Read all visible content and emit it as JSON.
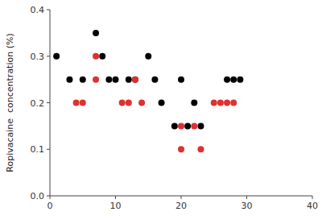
{
  "chart_data": {
    "type": "scatter",
    "ylabel": "Ropivacaine  concentration (%)",
    "series": [
      {
        "color": "#000000",
        "x": [
          1,
          3,
          5,
          7,
          8,
          9,
          10,
          12,
          13,
          15,
          16,
          17,
          19,
          20,
          21,
          22,
          23,
          27,
          28,
          29
        ],
        "values": [
          0.3,
          0.25,
          0.25,
          0.35,
          0.3,
          0.25,
          0.25,
          0.25,
          0.25,
          0.3,
          0.25,
          0.2,
          0.15,
          0.25,
          0.15,
          0.2,
          0.15,
          0.25,
          0.25,
          0.25
        ]
      },
      {
        "color": "#e03030",
        "x": [
          4,
          5,
          7,
          7,
          11,
          12,
          13,
          14,
          20,
          20,
          22,
          23,
          25,
          26,
          27,
          28
        ],
        "values": [
          0.2,
          0.2,
          0.3,
          0.25,
          0.2,
          0.2,
          0.25,
          0.2,
          0.15,
          0.1,
          0.15,
          0.1,
          0.2,
          0.2,
          0.2,
          0.2
        ]
      }
    ],
    "xlim": [
      0,
      40
    ],
    "ylim": [
      0.0,
      0.4
    ],
    "xticks": [
      0,
      10,
      20,
      30,
      40
    ],
    "yticks": [
      {
        "value": 0.0,
        "label": "0.0"
      },
      0.1,
      0.2,
      0.3,
      0.4
    ],
    "grid": false
  }
}
